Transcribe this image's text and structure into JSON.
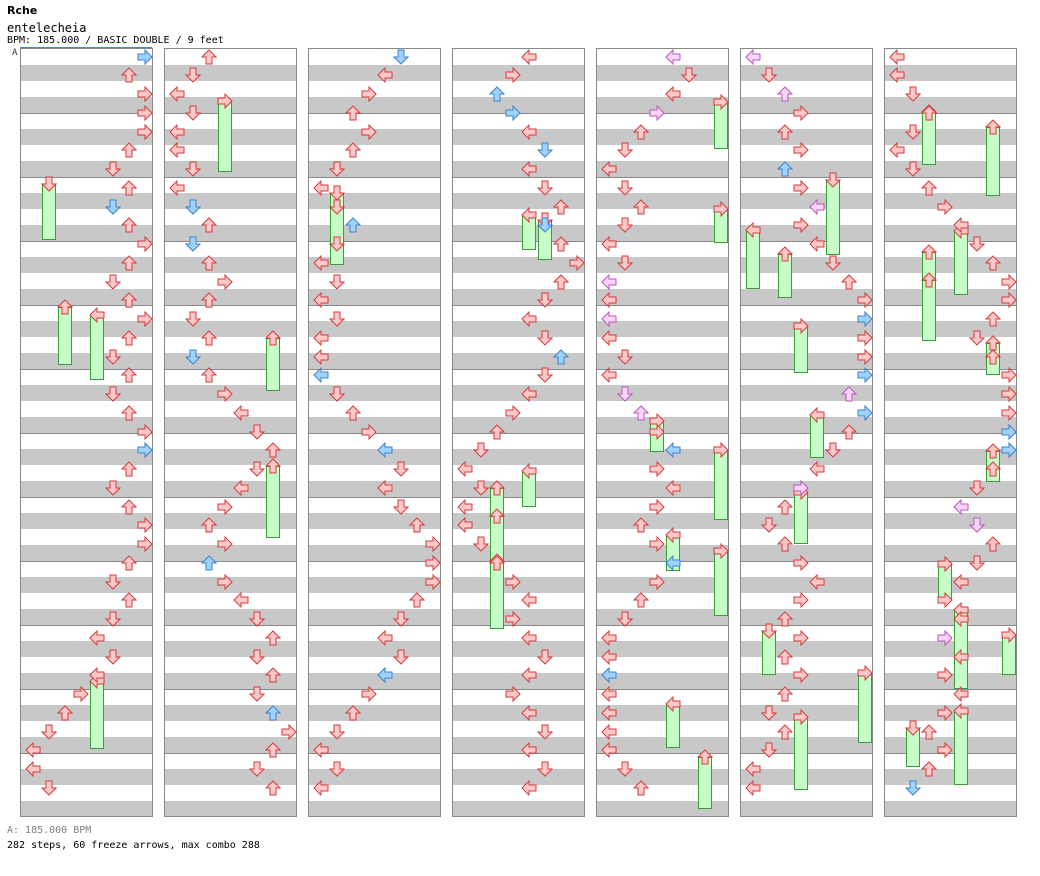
{
  "header": {
    "brand": "Rche",
    "title": "entelecheia",
    "info": "BPM: 185.000 / BASIC DOUBLE / 9 feet",
    "segment_marker": "A"
  },
  "footer": {
    "bpm": "A: 185.000 BPM",
    "stats": "282 steps, 60 freeze arrows, max combo 288"
  },
  "colors": {
    "note_red": "#ffc8c8",
    "note_red_border": "#d23c3c",
    "note_blue": "#a0d2ff",
    "note_blue_border": "#3c82c8",
    "note_pink": "#ffd2ff",
    "note_pink_border": "#b45ab4",
    "freeze_fill": "#c8fcc8",
    "freeze_border": "#3c9a3c",
    "stripe": "#c8c8c8"
  },
  "chart_data": {
    "type": "step-chart",
    "mode": "BASIC DOUBLE",
    "bpm": 185.0,
    "difficulty_feet": 9,
    "lanes": [
      "L-left",
      "L-down",
      "L-up",
      "L-right",
      "R-left",
      "R-down",
      "R-up",
      "R-right"
    ],
    "columns": 7,
    "measures_per_column": 12,
    "steps": 282,
    "freeze_arrows": 60,
    "max_combo": 288
  }
}
